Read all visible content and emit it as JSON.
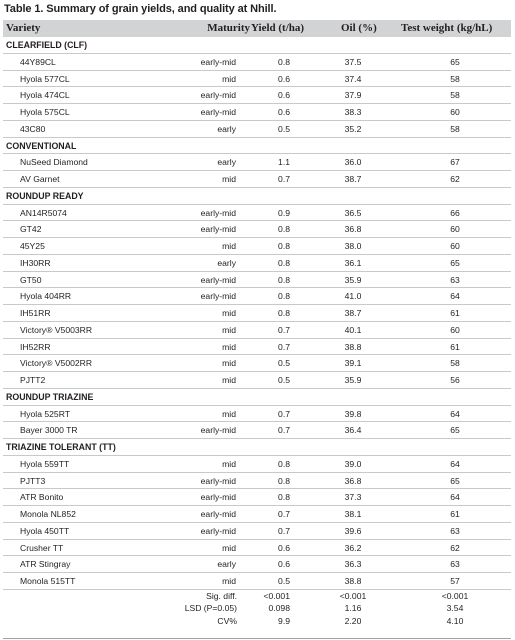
{
  "title": "Table 1. Summary of grain yields, and quality at Nhill.",
  "headers": {
    "variety": "Variety",
    "maturity": "Maturity",
    "yield": "Yield (t/ha)",
    "oil": "Oil (%)",
    "test_weight": "Test weight (kg/hL)"
  },
  "sections": [
    {
      "name": "CLEARFIELD (CLF)",
      "rows": [
        {
          "variety": "44Y89CL",
          "maturity": "early-mid",
          "yield": "0.8",
          "oil": "37.5",
          "tw": "65"
        },
        {
          "variety": "Hyola 577CL",
          "maturity": "mid",
          "yield": "0.6",
          "oil": "37.4",
          "tw": "58"
        },
        {
          "variety": "Hyola 474CL",
          "maturity": "early-mid",
          "yield": "0.6",
          "oil": "37.9",
          "tw": "58"
        },
        {
          "variety": "Hyola 575CL",
          "maturity": "early-mid",
          "yield": "0.6",
          "oil": "38.3",
          "tw": "60"
        },
        {
          "variety": "43C80",
          "maturity": "early",
          "yield": "0.5",
          "oil": "35.2",
          "tw": "58"
        }
      ]
    },
    {
      "name": "CONVENTIONAL",
      "rows": [
        {
          "variety": "NuSeed Diamond",
          "maturity": "early",
          "yield": "1.1",
          "oil": "36.0",
          "tw": "67"
        },
        {
          "variety": "AV Garnet",
          "maturity": "mid",
          "yield": "0.7",
          "oil": "38.7",
          "tw": "62"
        }
      ]
    },
    {
      "name": "ROUNDUP READY",
      "rows": [
        {
          "variety": "AN14R5074",
          "maturity": "early-mid",
          "yield": "0.9",
          "oil": "36.5",
          "tw": "66"
        },
        {
          "variety": "GT42",
          "maturity": "early-mid",
          "yield": "0.8",
          "oil": "36.8",
          "tw": "60"
        },
        {
          "variety": "45Y25",
          "maturity": "mid",
          "yield": "0.8",
          "oil": "38.0",
          "tw": "60"
        },
        {
          "variety": "IH30RR",
          "maturity": "early",
          "yield": "0.8",
          "oil": "36.1",
          "tw": "65"
        },
        {
          "variety": "GT50",
          "maturity": "early-mid",
          "yield": "0.8",
          "oil": "35.9",
          "tw": "63"
        },
        {
          "variety": "Hyola 404RR",
          "maturity": "early-mid",
          "yield": "0.8",
          "oil": "41.0",
          "tw": "64"
        },
        {
          "variety": "IH51RR",
          "maturity": "mid",
          "yield": "0.8",
          "oil": "38.7",
          "tw": "61"
        },
        {
          "variety": "Victory® V5003RR",
          "maturity": "mid",
          "yield": "0.7",
          "oil": "40.1",
          "tw": "60"
        },
        {
          "variety": "IH52RR",
          "maturity": "mid",
          "yield": "0.7",
          "oil": "38.8",
          "tw": "61"
        },
        {
          "variety": "Victory® V5002RR",
          "maturity": "mid",
          "yield": "0.5",
          "oil": "39.1",
          "tw": "58"
        },
        {
          "variety": "PJTT2",
          "maturity": "mid",
          "yield": "0.5",
          "oil": "35.9",
          "tw": "56"
        }
      ]
    },
    {
      "name": "ROUNDUP TRIAZINE",
      "rows": [
        {
          "variety": "Hyola 525RT",
          "maturity": "mid",
          "yield": "0.7",
          "oil": "39.8",
          "tw": "64"
        },
        {
          "variety": "Bayer 3000 TR",
          "maturity": "early-mid",
          "yield": "0.7",
          "oil": "36.4",
          "tw": "65"
        }
      ]
    },
    {
      "name": "TRIAZINE TOLERANT (TT)",
      "rows": [
        {
          "variety": "Hyola 559TT",
          "maturity": "mid",
          "yield": "0.8",
          "oil": "39.0",
          "tw": "64"
        },
        {
          "variety": "PJTT3",
          "maturity": "early-mid",
          "yield": "0.8",
          "oil": "36.8",
          "tw": "65"
        },
        {
          "variety": "ATR Bonito",
          "maturity": "early-mid",
          "yield": "0.8",
          "oil": "37.3",
          "tw": "64"
        },
        {
          "variety": "Monola NL852",
          "maturity": "early-mid",
          "yield": "0.7",
          "oil": "38.1",
          "tw": "61"
        },
        {
          "variety": "Hyola 450TT",
          "maturity": "early-mid",
          "yield": "0.7",
          "oil": "39.6",
          "tw": "63"
        },
        {
          "variety": "Crusher TT",
          "maturity": "mid",
          "yield": "0.6",
          "oil": "36.2",
          "tw": "62"
        },
        {
          "variety": "ATR Stingray",
          "maturity": "early",
          "yield": "0.6",
          "oil": "36.3",
          "tw": "63"
        },
        {
          "variety": "Monola 515TT",
          "maturity": "mid",
          "yield": "0.5",
          "oil": "38.8",
          "tw": "57"
        }
      ]
    }
  ],
  "stats": [
    {
      "label": "Sig. diff.",
      "yield": "<0.001",
      "oil": "<0.001",
      "tw": "<0.001"
    },
    {
      "label": "LSD (P=0.05)",
      "yield": "0.098",
      "oil": "1.16",
      "tw": "3.54"
    },
    {
      "label": "CV%",
      "yield": "9.9",
      "oil": "2.20",
      "tw": "4.10"
    }
  ]
}
